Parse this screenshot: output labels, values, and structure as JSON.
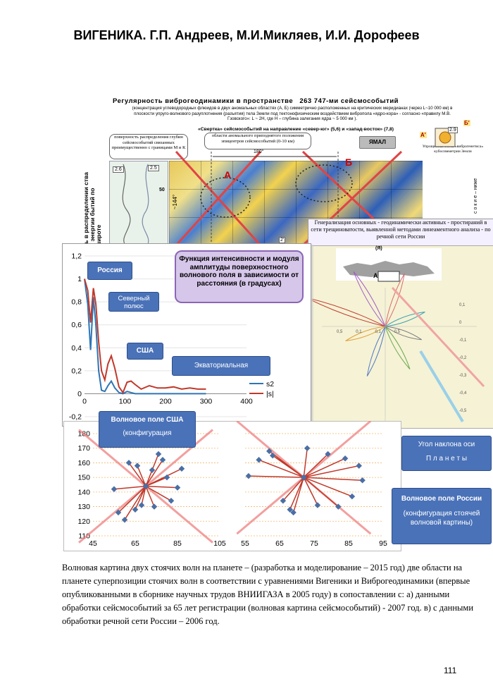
{
  "header": {
    "title": "ВИГЕНИКА. Г.П. Андреев, М.И.Микляев, И.И. Дорофеев"
  },
  "poster": {
    "title_a": "Регулярность  виброгеодинамики  в  пространстве",
    "title_b": "263 747-ми сейсмособытий",
    "subtitle": "(концентрация углеводородных флюидов в двух аномальных областях  (А, Б)  симметрично расположенных на критических меридианах (через L~10 000 км) в плоскости упруго-волнового разуплотнения (разъятия) тела Земли под тектонофизическим воздействием вибропола «ядро-кора» - согласно «правилу М.В. Гзовского»: L ~ 2H, где H – глубина залегания ядра ~ 5 000 км ).",
    "convolution": "«Свертка» сейсмособытий на направление «север-юг» (5,6)  и «запад-восток» (7,8)",
    "bubble_surface": "поверхность распределения глубин сейсмособытий связанных преимущественно с границами М и К",
    "bubble_anomaly": "области аномального приподнятого положения эпицентров сейсмособытий (0-10 км)",
    "yamal": "ЯМАЛ",
    "simplified_scheme": "Упрощенная схема «виброгенетиса» кубосимметрии Земли",
    "left_vertical": "ть в распределении ства и энергии бытий по широте",
    "right_vertical": "с о к и е – ниже",
    "labels": {
      "a": "А",
      "b": "Б",
      "a_prime": "А'",
      "b_prime": "Б'",
      "deg180": "180°",
      "deg144": "~144°",
      "n26": "2.6",
      "n25": "2.5",
      "n29": "2.9",
      "n50": "50",
      "n2prime": "2'",
      "ya": "(Я)"
    }
  },
  "generalization_box": "Генерализация основных - геодинамически активных - простираний в сети трещиноватости, выявленной методами линеаментного анализа - по речной сети России",
  "rose_ticks": [
    "0,1",
    "0",
    "-0,1",
    "-0,2",
    "-0,3",
    "-0,4",
    "-0,5"
  ],
  "rose_x_ticks": [
    "0,5",
    "0,1",
    "0,1",
    "0,5"
  ],
  "callouts": {
    "russia": "Россия",
    "north_pole": "Северный полюс",
    "usa": "США",
    "equatorial": "Экваториальная",
    "wavefield_usa_line1": "Волновое поле США",
    "wavefield_usa_line2": "(конфигурация",
    "axis_tilt_line1": "Угол наклона оси",
    "axis_tilt_line2": "П л а н е т ы",
    "wavefield_russia_line1": "Волновое поле России",
    "wavefield_russia_line2": "(конфигурация стоячей волновой картины)"
  },
  "chart_data": [
    {
      "type": "line",
      "title": "Функция интенсивности и модуля амплитуды поверхностного волнового поля в зависимости от расстояния (в градусах)",
      "xlim": [
        0,
        400
      ],
      "ylim": [
        -0.2,
        1.2
      ],
      "x_ticks": [
        "0",
        "100",
        "200",
        "300",
        "400"
      ],
      "y_ticks": [
        "1,2",
        "1",
        "0,8",
        "0,6",
        "0,4",
        "0,2",
        "0",
        "-0,2"
      ],
      "legend_position": "right",
      "series": [
        {
          "name": "s2",
          "color": "#2e75b6",
          "x": [
            0,
            8,
            15,
            22,
            28,
            35,
            42,
            50,
            58,
            66,
            75,
            85,
            95,
            105,
            115,
            125,
            140,
            160,
            180,
            200,
            220,
            240,
            260,
            280,
            300
          ],
          "y": [
            1.0,
            0.78,
            0.38,
            0.84,
            0.6,
            0.2,
            0.03,
            0.02,
            0.07,
            0.11,
            0.05,
            0.01,
            0.0,
            0.02,
            0.01,
            0.0,
            0.0,
            0.0,
            0.0,
            0.0,
            0.0,
            0.0,
            0.0,
            0.0,
            0.0
          ]
        },
        {
          "name": "|s|",
          "color": "#c0392b",
          "x": [
            0,
            8,
            15,
            22,
            28,
            35,
            42,
            50,
            58,
            66,
            75,
            85,
            95,
            105,
            115,
            125,
            140,
            160,
            180,
            200,
            220,
            240,
            260,
            280,
            300
          ],
          "y": [
            1.0,
            0.9,
            0.62,
            0.92,
            0.78,
            0.45,
            0.2,
            0.12,
            0.26,
            0.33,
            0.22,
            0.06,
            0.01,
            0.1,
            0.11,
            0.08,
            0.04,
            0.07,
            0.05,
            0.05,
            0.06,
            0.04,
            0.05,
            0.04,
            0.04
          ]
        }
      ]
    },
    {
      "type": "scatter",
      "title": "",
      "xlim": [
        45,
        105
      ],
      "ylim": [
        110,
        180
      ],
      "x_ticks": [
        "45",
        "65",
        "85",
        "105"
      ],
      "y_ticks": [
        "180",
        "170",
        "160",
        "150",
        "140",
        "130",
        "120",
        "110"
      ],
      "center": [
        70,
        144
      ],
      "series": [
        {
          "name": "",
          "x": [
            70,
            57,
            70,
            60,
            70,
            68,
            70,
            74,
            70,
            82,
            70,
            85,
            70,
            87,
            70,
            78,
            70,
            73,
            70,
            62,
            70,
            55,
            70,
            65,
            70,
            76,
            70,
            66,
            70,
            80
          ],
          "y": [
            144,
            126,
            144,
            121,
            144,
            131,
            144,
            130,
            144,
            134,
            144,
            143,
            144,
            156,
            144,
            162,
            144,
            155,
            144,
            160,
            144,
            142,
            144,
            128,
            144,
            166,
            144,
            158,
            144,
            150
          ]
        }
      ]
    },
    {
      "type": "scatter",
      "title": "",
      "xlim": [
        55,
        95
      ],
      "ylim": [
        110,
        180
      ],
      "x_ticks": [
        "55",
        "65",
        "75",
        "85",
        "95"
      ],
      "center": [
        72,
        150
      ],
      "series": [
        {
          "name": "",
          "x": [
            72,
            59,
            72,
            62,
            72,
            68,
            72,
            76,
            72,
            86,
            72,
            89,
            72,
            88,
            72,
            79,
            72,
            73,
            72,
            63,
            72,
            56,
            72,
            66,
            72,
            82,
            72,
            69,
            72,
            84
          ],
          "y": [
            150,
            162,
            150,
            168,
            150,
            128,
            150,
            131,
            150,
            137,
            150,
            148,
            150,
            158,
            150,
            166,
            150,
            170,
            150,
            165,
            150,
            151,
            150,
            134,
            150,
            130,
            150,
            126,
            150,
            163
          ]
        }
      ]
    }
  ],
  "caption": "Волновая картина двух стоячих волн на планете – (разработка и моделирование – 2015 год) две области на планете суперпозиции стоячих волн в соответствии с уравнениями Вигеники и Виброгеодинамики (впервые опубликованными в сборнике научных трудов ВНИИГАЗА в 2005 году) в сопоставлении с: а) данными обработки сейсмособытий за 65 лет регистрации (волновая картина сейсмособытий) - 2007 год.  в) с данными обработки речной сети России – 2006 год.",
  "page_number": "111"
}
